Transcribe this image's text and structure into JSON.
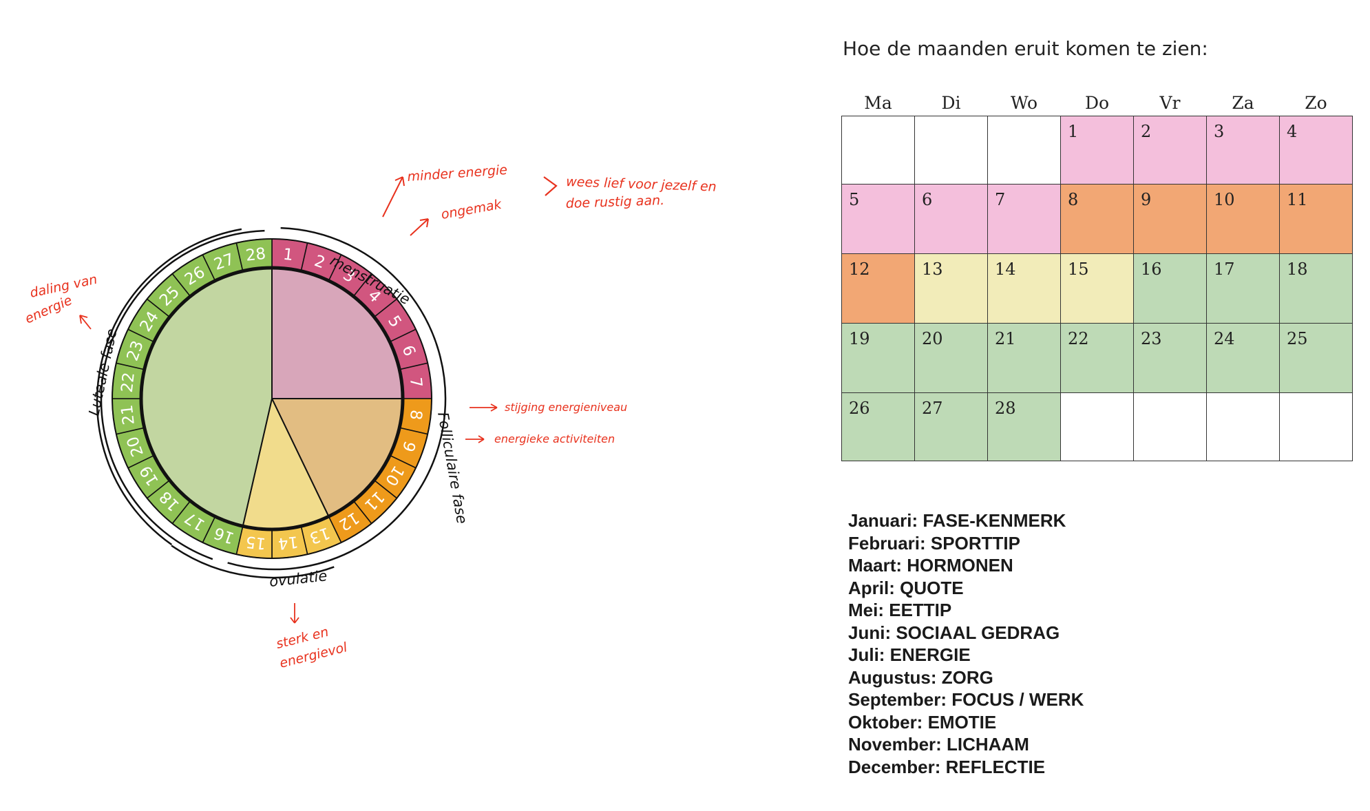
{
  "cycle": {
    "days": [
      "1",
      "2",
      "3",
      "4",
      "5",
      "6",
      "7",
      "8",
      "9",
      "10",
      "11",
      "12",
      "13",
      "14",
      "15",
      "16",
      "17",
      "18",
      "19",
      "20",
      "21",
      "22",
      "23",
      "24",
      "25",
      "26",
      "27",
      "28"
    ],
    "phase_colors": {
      "menstruatie": "#d1567f",
      "folliculaire": "#ee9a1b",
      "ovulatie": "#f3c64e",
      "luteale": "#8fc255"
    },
    "pie_colors": {
      "menstruatie": "#d8a6ba",
      "folliculaire": "#e2bd82",
      "ovulatie": "#f1dc8c",
      "luteale": "#c2d6a1"
    },
    "phase_labels": {
      "menstruatie": "menstruatie",
      "folliculaire": "Folliculaire fase",
      "ovulatie": "ovulatie",
      "luteale": "Luteale fase"
    },
    "notes": {
      "minder_energie": "minder energie",
      "ongemak": "ongemak",
      "wees_lief": "wees lief voor jezelf en",
      "doe_rustig": "doe rustig aan.",
      "stijging": "stijging energieniveau",
      "energieke": "energieke activiteiten",
      "daling_1": "daling van",
      "daling_2": "energie",
      "sterk_1": "sterk en",
      "sterk_2": "energievol"
    }
  },
  "calendar": {
    "heading": "Hoe de maanden eruit komen te zien:",
    "weekdays": [
      "Ma",
      "Di",
      "Wo",
      "Do",
      "Vr",
      "Za",
      "Zo"
    ],
    "colors": {
      "menstruatie": "#f4bfdc",
      "folliculaire": "#f2a774",
      "ovulatie": "#f2ecb9",
      "luteale": "#bedab6",
      "empty": "#ffffff"
    },
    "weeks": [
      [
        {
          "day": "",
          "phase": "empty"
        },
        {
          "day": "",
          "phase": "empty"
        },
        {
          "day": "",
          "phase": "empty"
        },
        {
          "day": "1",
          "phase": "menstruatie"
        },
        {
          "day": "2",
          "phase": "menstruatie"
        },
        {
          "day": "3",
          "phase": "menstruatie"
        },
        {
          "day": "4",
          "phase": "menstruatie"
        }
      ],
      [
        {
          "day": "5",
          "phase": "menstruatie"
        },
        {
          "day": "6",
          "phase": "menstruatie"
        },
        {
          "day": "7",
          "phase": "menstruatie"
        },
        {
          "day": "8",
          "phase": "folliculaire"
        },
        {
          "day": "9",
          "phase": "folliculaire"
        },
        {
          "day": "10",
          "phase": "folliculaire"
        },
        {
          "day": "11",
          "phase": "folliculaire"
        }
      ],
      [
        {
          "day": "12",
          "phase": "folliculaire"
        },
        {
          "day": "13",
          "phase": "ovulatie"
        },
        {
          "day": "14",
          "phase": "ovulatie"
        },
        {
          "day": "15",
          "phase": "ovulatie"
        },
        {
          "day": "16",
          "phase": "luteale"
        },
        {
          "day": "17",
          "phase": "luteale"
        },
        {
          "day": "18",
          "phase": "luteale"
        }
      ],
      [
        {
          "day": "19",
          "phase": "luteale"
        },
        {
          "day": "20",
          "phase": "luteale"
        },
        {
          "day": "21",
          "phase": "luteale"
        },
        {
          "day": "22",
          "phase": "luteale"
        },
        {
          "day": "23",
          "phase": "luteale"
        },
        {
          "day": "24",
          "phase": "luteale"
        },
        {
          "day": "25",
          "phase": "luteale"
        }
      ],
      [
        {
          "day": "26",
          "phase": "luteale"
        },
        {
          "day": "27",
          "phase": "luteale"
        },
        {
          "day": "28",
          "phase": "luteale"
        },
        {
          "day": "",
          "phase": "empty"
        },
        {
          "day": "",
          "phase": "empty"
        },
        {
          "day": "",
          "phase": "empty"
        },
        {
          "day": "",
          "phase": "empty"
        }
      ]
    ]
  },
  "themes": [
    "Januari: FASE-KENMERK",
    "Februari: SPORTTIP",
    "Maart: HORMONEN",
    "April: QUOTE",
    "Mei: EETTIP",
    "Juni: SOCIAAL GEDRAG",
    "Juli: ENERGIE",
    "Augustus: ZORG",
    "September: FOCUS / WERK",
    "Oktober: EMOTIE",
    "November: LICHAAM",
    "December: REFLECTIE"
  ]
}
